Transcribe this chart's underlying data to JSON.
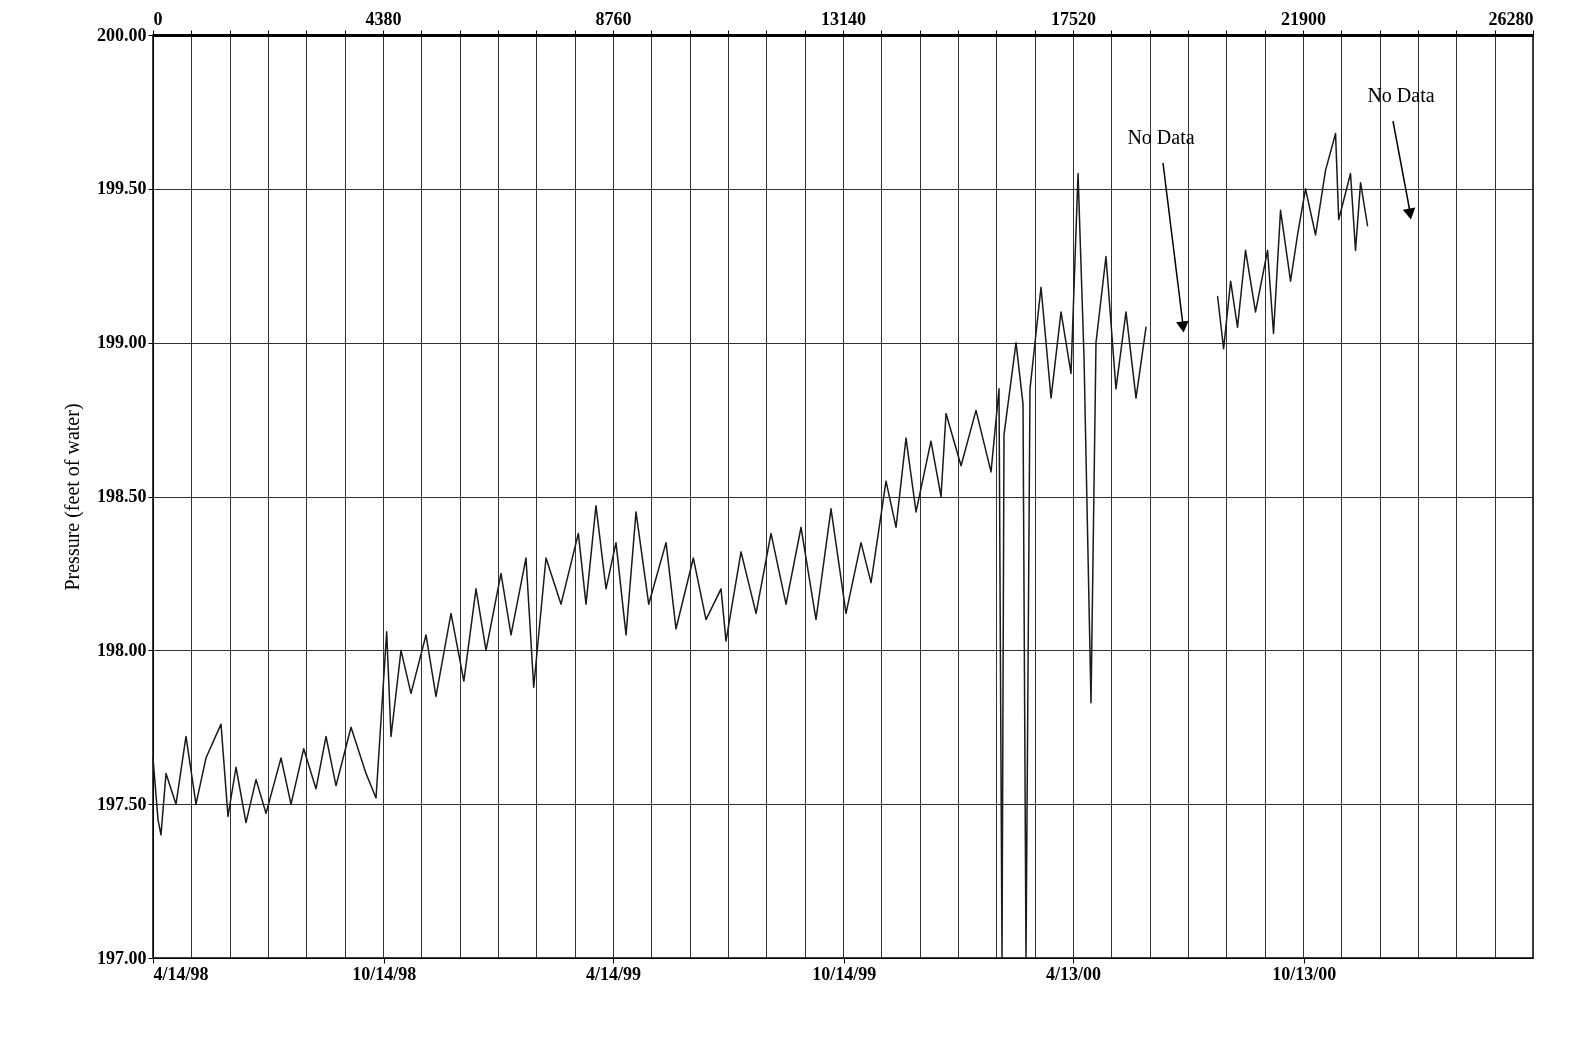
{
  "chart_data": {
    "type": "line",
    "ylabel": "Pressure (feet of water)",
    "xlim": [
      0,
      26280
    ],
    "xticks": [
      0,
      {
        "value": 730,
        "label": null
      },
      {
        "value": 1460,
        "label": null
      },
      {
        "value": 2190,
        "label": null
      },
      {
        "value": 2920,
        "label": null
      },
      {
        "value": 3650,
        "label": null
      },
      4380,
      {
        "value": 5110,
        "label": null
      },
      {
        "value": 5840,
        "label": null
      },
      {
        "value": 6570,
        "label": null
      },
      {
        "value": 7300,
        "label": null
      },
      {
        "value": 8030,
        "label": null
      },
      8760,
      {
        "value": 9490,
        "label": null
      },
      {
        "value": 10220,
        "label": null
      },
      {
        "value": 10950,
        "label": null
      },
      {
        "value": 11680,
        "label": null
      },
      {
        "value": 12410,
        "label": null
      },
      13140,
      {
        "value": 13870,
        "label": null
      },
      {
        "value": 14600,
        "label": null
      },
      {
        "value": 15330,
        "label": null
      },
      {
        "value": 16060,
        "label": null
      },
      {
        "value": 16790,
        "label": null
      },
      17520,
      {
        "value": 18250,
        "label": null
      },
      {
        "value": 18980,
        "label": null
      },
      {
        "value": 19710,
        "label": null
      },
      {
        "value": 20440,
        "label": null
      },
      {
        "value": 21170,
        "label": null
      },
      21900,
      {
        "value": 22630,
        "label": null
      },
      {
        "value": 23360,
        "label": null
      },
      {
        "value": 24090,
        "label": null
      },
      {
        "value": 24820,
        "label": null
      },
      {
        "value": 25550,
        "label": null
      },
      26280
    ],
    "x2lim": [
      "1998-04-14",
      "2001-04-13"
    ],
    "x2ticks": [
      {
        "value": "1998-04-14",
        "label": "4/14/98"
      },
      {
        "value": "1998-10-14",
        "label": "10/14/98"
      },
      {
        "value": "1999-04-14",
        "label": "4/14/99"
      },
      {
        "value": "1999-10-14",
        "label": "10/14/99"
      },
      {
        "value": "2000-04-13",
        "label": "4/13/00"
      },
      {
        "value": "2000-10-13",
        "label": "10/13/00"
      }
    ],
    "ylim": [
      197,
      200
    ],
    "yticks": [
      {
        "value": 197,
        "label": "197.00"
      },
      {
        "value": 197.5,
        "label": "197.50"
      },
      {
        "value": 198,
        "label": "198.00"
      },
      {
        "value": 198.5,
        "label": "198.50"
      },
      {
        "value": 199,
        "label": "199.00"
      },
      {
        "value": 199.5,
        "label": "199.50"
      },
      {
        "value": 200,
        "label": "200.00"
      }
    ],
    "grid": true,
    "marker": "none",
    "line_style": "solid",
    "annotations": [
      "No Data",
      "No Data"
    ],
    "series": [
      {
        "color": "#1a1a1a",
        "x": [
          0,
          95,
          152,
          248,
          438,
          628,
          819,
          1009,
          1295,
          1428,
          1581,
          1771,
          1962,
          2152,
          2438,
          2628,
          2870,
          3104,
          3295,
          3485,
          3771,
          4056,
          4247,
          4450,
          4533,
          4723,
          4913,
          5199,
          5389,
          5675,
          5920,
          6151,
          6342,
          6627,
          6818,
          7103,
          7250,
          7484,
          7770,
          8100,
          8246,
          8436,
          8627,
          8817,
          9008,
          9198,
          9440,
          9770,
          9960,
          10290,
          10531,
          10817,
          10912,
          11198,
          11484,
          11769,
          12055,
          12341,
          12626,
          12912,
          13197,
          13483,
          13674,
          13959,
          14150,
          14340,
          14531,
          14815,
          15007,
          15102,
          15388,
          15673,
          15959,
          16111,
          16168,
          16206,
          16435,
          16568,
          16625,
          16701,
          16911,
          17102,
          17292,
          17482,
          17616,
          17730,
          17863,
          17958,
          18148,
          18338,
          18529,
          18720,
          18910,
          19596,
          20274,
          20388,
          20522,
          20653,
          20806,
          20996,
          21225,
          21339,
          21472,
          21663,
          21796,
          21948,
          22139,
          22329,
          22520,
          22580,
          22805,
          22900,
          22996,
          23129
        ],
        "values": [
          197.65,
          197.45,
          197.4,
          197.6,
          197.5,
          197.72,
          197.5,
          197.65,
          197.76,
          197.46,
          197.62,
          197.44,
          197.58,
          197.47,
          197.65,
          197.5,
          197.68,
          197.55,
          197.72,
          197.56,
          197.75,
          197.6,
          197.52,
          198.06,
          197.72,
          198.0,
          197.86,
          198.05,
          197.85,
          198.12,
          197.9,
          198.2,
          198.0,
          198.25,
          198.05,
          198.3,
          197.88,
          198.3,
          198.15,
          198.38,
          198.15,
          198.47,
          198.2,
          198.35,
          198.05,
          198.45,
          198.15,
          198.35,
          198.07,
          198.3,
          198.1,
          198.2,
          198.03,
          198.32,
          198.12,
          198.38,
          198.15,
          198.4,
          198.1,
          198.46,
          198.12,
          198.35,
          198.22,
          198.55,
          198.4,
          198.69,
          198.45,
          198.68,
          198.5,
          198.77,
          198.6,
          198.78,
          198.58,
          198.85,
          197.0,
          198.7,
          199.0,
          198.8,
          197.0,
          198.85,
          199.18,
          198.82,
          199.1,
          198.9,
          199.55,
          198.95,
          197.83,
          199.0,
          199.28,
          198.85,
          199.1,
          198.82,
          199.05,
          null,
          199.15,
          198.98,
          199.2,
          199.05,
          199.3,
          199.1,
          199.3,
          199.03,
          199.43,
          199.2,
          199.35,
          199.5,
          199.35,
          199.56,
          199.68,
          199.4,
          199.55,
          199.3,
          199.52,
          199.38
        ]
      }
    ]
  }
}
